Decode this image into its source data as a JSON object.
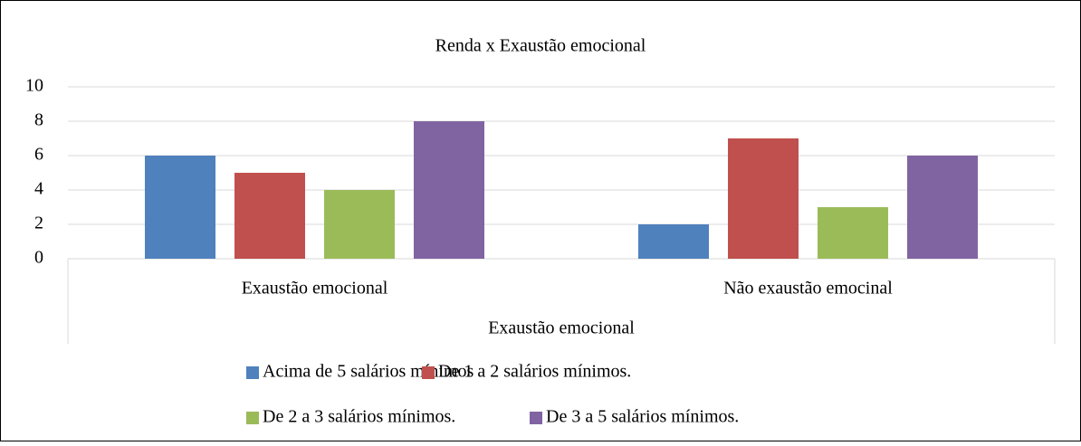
{
  "chart_data": {
    "type": "bar",
    "title": "Renda x Exaustão emocional",
    "categories": [
      "Exaustão emocional",
      "Não exaustão emocinal"
    ],
    "xlabel": "Exaustão emocional",
    "series": [
      {
        "name": "Acima de 5 salários mínimos",
        "color": "#4f81bd",
        "values": [
          6,
          2
        ]
      },
      {
        "name": "De 1 a 2 salários mínimos.",
        "color": "#c0504d",
        "values": [
          5,
          7
        ]
      },
      {
        "name": "De 2 a 3 salários mínimos.",
        "color": "#9bbb59",
        "values": [
          4,
          3
        ]
      },
      {
        "name": "De 3 a 5 salários mínimos.",
        "color": "#8064a2",
        "values": [
          8,
          6
        ]
      }
    ],
    "ylim": [
      0,
      10
    ],
    "yticks": [
      0,
      2,
      4,
      6,
      8,
      10
    ],
    "grid": true,
    "legend": "bottom"
  }
}
